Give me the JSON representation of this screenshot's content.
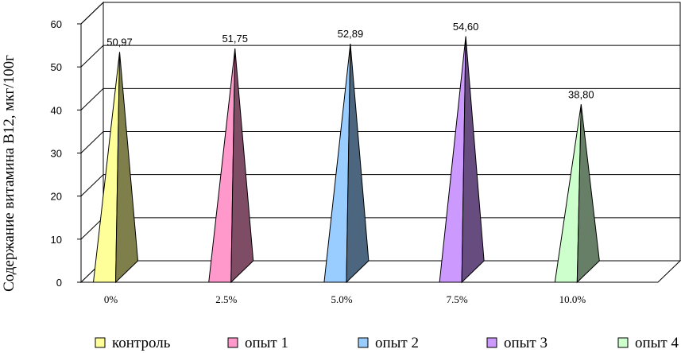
{
  "chart_data": {
    "type": "bar",
    "bar_shape": "pyramid-3d",
    "categories": [
      "0%",
      "2.5%",
      "5.0%",
      "7.5%",
      "10.0%"
    ],
    "values": [
      50.97,
      51.75,
      52.89,
      54.6,
      38.8
    ],
    "value_labels": [
      "50,97",
      "51,75",
      "52,89",
      "54,60",
      "38,80"
    ],
    "ylabel": "Содержание витамина В12, мкг/100г",
    "ylim": [
      0,
      60
    ],
    "yticks": [
      "0",
      "10",
      "20",
      "30",
      "40",
      "50",
      "60"
    ],
    "grid": true,
    "legend_position": "bottom",
    "legend": [
      "контроль",
      "опыт 1",
      "опыт 2",
      "опыт 3",
      "опыт 4"
    ],
    "colors": {
      "front": [
        "#ffff99",
        "#ff99cc",
        "#99ccff",
        "#cc99ff",
        "#ccffcc"
      ],
      "side": [
        "#7f7f4c",
        "#7f4c66",
        "#4c667f",
        "#664c7f",
        "#667f66"
      ]
    }
  }
}
